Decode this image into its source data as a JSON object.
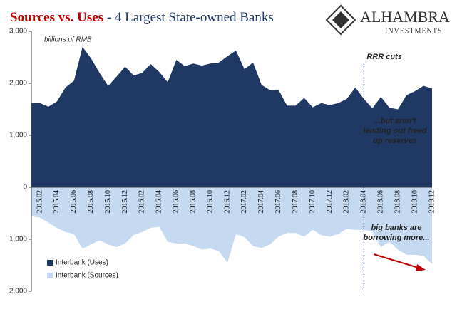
{
  "chart_data": {
    "type": "area",
    "title": {
      "bold": "Sources vs. Uses",
      "rest": "- 4 Largest State-owned Banks"
    },
    "logo": {
      "name": "ALHAMBRA",
      "sub": "INVESTMENTS"
    },
    "ylabel": "billions of RMB",
    "categories": [
      null,
      "2015.02",
      null,
      "2015.04",
      null,
      "2015.06",
      null,
      "2015.08",
      null,
      "2015.10",
      null,
      "2015.12",
      null,
      "2016.02",
      null,
      "2016.04",
      null,
      "2016.06",
      null,
      "2016.08",
      null,
      "2016.10",
      null,
      "2016.12",
      null,
      "2017.02",
      null,
      "2017.04",
      null,
      "2017.06",
      null,
      "2017.08",
      null,
      "2017.10",
      null,
      "2017.12",
      null,
      "2018.02",
      null,
      "2018.04",
      null,
      "2018.06",
      null,
      "2018.08",
      null,
      "2018.10",
      null,
      "2018.12"
    ],
    "series": [
      {
        "name": "Interbank (Uses)",
        "color": "#1f3864",
        "values": [
          1620,
          1620,
          1550,
          1650,
          1920,
          2050,
          2700,
          2480,
          2200,
          1950,
          2130,
          2320,
          2150,
          2200,
          2370,
          2220,
          2020,
          2450,
          2330,
          2380,
          2340,
          2380,
          2400,
          2520,
          2630,
          2270,
          2400,
          1970,
          1870,
          1870,
          1570,
          1570,
          1720,
          1540,
          1620,
          1580,
          1620,
          1700,
          1920,
          1700,
          1520,
          1740,
          1530,
          1500,
          1770,
          1850,
          1950,
          1900
        ]
      },
      {
        "name": "Interbank (Sources)",
        "color": "#c5d9f1",
        "values": [
          -560,
          -580,
          -680,
          -780,
          -860,
          -900,
          -1180,
          -1100,
          -1020,
          -1100,
          -1150,
          -1080,
          -920,
          -860,
          -780,
          -760,
          -1050,
          -1080,
          -1080,
          -1130,
          -1200,
          -1180,
          -1230,
          -1450,
          -900,
          -960,
          -1130,
          -1170,
          -1100,
          -950,
          -880,
          -880,
          -950,
          -820,
          -920,
          -950,
          -900,
          -800,
          -820,
          -820,
          -850,
          -1150,
          -1050,
          -1200,
          -1300,
          -1300,
          -1320,
          -1480
        ]
      }
    ],
    "ylim": [
      -2000,
      3000
    ],
    "yticks": [
      {
        "value": -2000,
        "label": "-2,000"
      },
      {
        "value": -1000,
        "label": "-1,000"
      },
      0,
      {
        "value": 1000,
        "label": "1,000"
      },
      {
        "value": 2000,
        "label": "2,000"
      },
      {
        "value": 3000,
        "label": "3,000"
      }
    ],
    "marker": {
      "at": "2018.04",
      "text": "RRR cuts"
    },
    "annotations": [
      {
        "lines": [
          "...but aren't",
          "lending out freed",
          "up reserves"
        ],
        "color": "#ffffff"
      },
      {
        "lines": [
          "big banks are",
          "borrowing more..."
        ],
        "color": "#c00000"
      }
    ],
    "legend": "lower left"
  }
}
